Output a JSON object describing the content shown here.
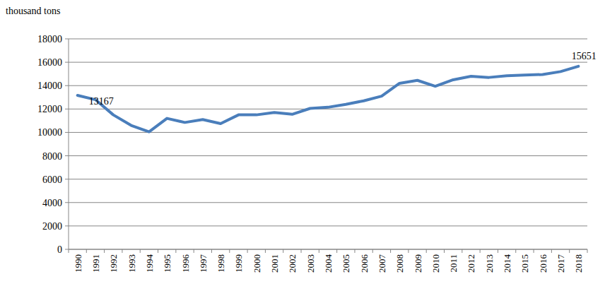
{
  "chart_data": {
    "type": "line",
    "ylabel": "thousand tons",
    "categories": [
      "1990",
      "1991",
      "1992",
      "1993",
      "1994",
      "1995",
      "1996",
      "1997",
      "1998",
      "1999",
      "2000",
      "2001",
      "2002",
      "2003",
      "2004",
      "2005",
      "2006",
      "2007",
      "2008",
      "2009",
      "2010",
      "2011",
      "2012",
      "2013",
      "2014",
      "2015",
      "2016",
      "2017",
      "2018"
    ],
    "values": [
      13167,
      12800,
      11500,
      10600,
      10050,
      11200,
      10850,
      11100,
      10750,
      11500,
      11500,
      11700,
      11550,
      12050,
      12150,
      12400,
      12700,
      13100,
      14200,
      14450,
      13950,
      14500,
      14800,
      14700,
      14850,
      14900,
      14950,
      15200,
      15651
    ],
    "value_labels": [
      "13167",
      null,
      null,
      null,
      null,
      null,
      null,
      null,
      null,
      null,
      null,
      null,
      null,
      null,
      null,
      null,
      null,
      null,
      null,
      null,
      null,
      null,
      null,
      null,
      null,
      null,
      null,
      null,
      "15651"
    ],
    "color": "#4a7ebb",
    "ylim": [
      0,
      18000
    ],
    "yticks": [
      0,
      2000,
      4000,
      6000,
      8000,
      10000,
      12000,
      14000,
      16000,
      18000
    ],
    "grid": true,
    "marker": "none",
    "line_style": "solid"
  }
}
